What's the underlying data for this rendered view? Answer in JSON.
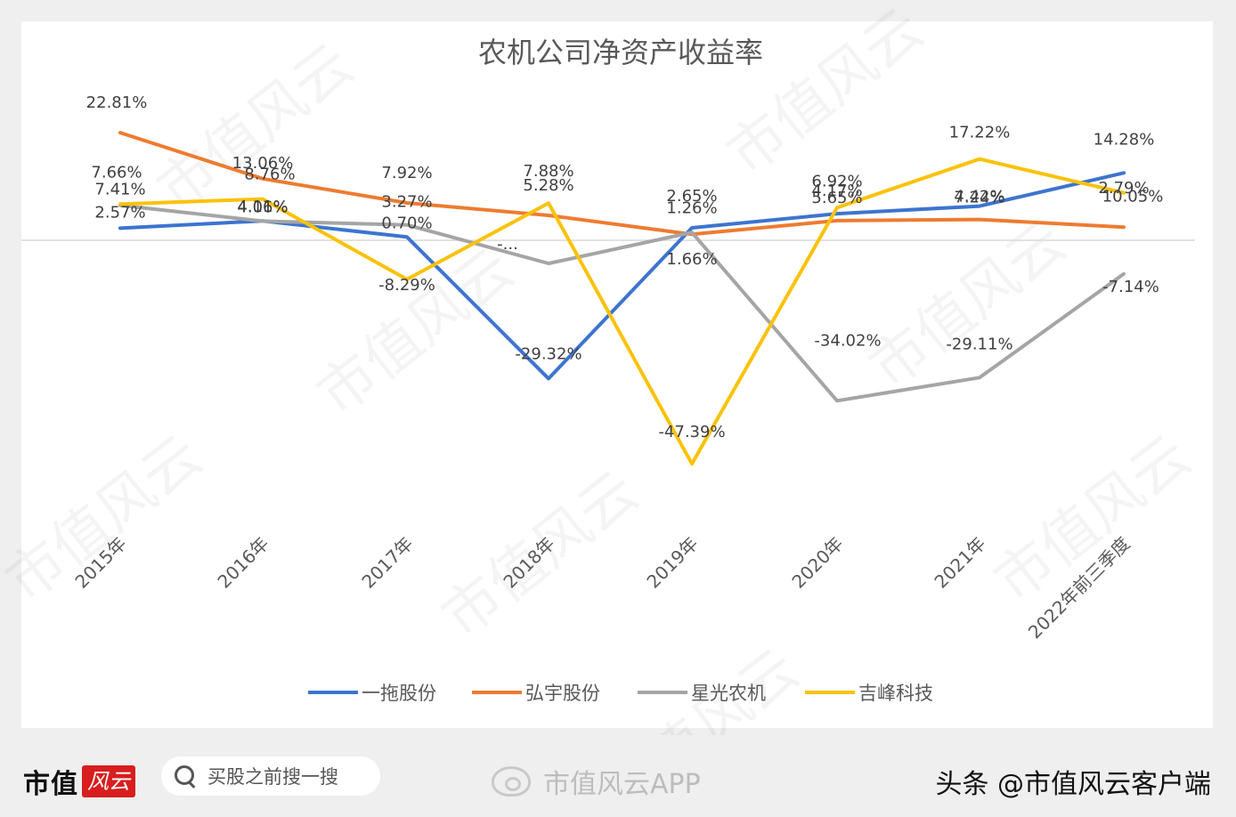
{
  "chart_data": {
    "type": "line",
    "title": "农机公司净资产收益率",
    "categories": [
      "2015年",
      "2016年",
      "2017年",
      "2018年",
      "2019年",
      "2020年",
      "2021年",
      "2022年前三季度"
    ],
    "series": [
      {
        "name": "一拖股份",
        "color": "#3d74cf",
        "values": [
          2.57,
          4.11,
          0.7,
          -29.32,
          2.65,
          5.65,
          7.24,
          14.28
        ],
        "labels": [
          "2.57%",
          "4.11%",
          "0.70%",
          "-29.32%",
          "2.65%",
          "5.65%",
          "7.24%",
          "14.28%"
        ]
      },
      {
        "name": "弘宇股份",
        "color": "#ee7b31",
        "values": [
          22.81,
          13.06,
          7.92,
          5.28,
          1.26,
          4.17,
          4.42,
          2.79
        ],
        "labels": [
          "22.81%",
          "13.06%",
          "7.92%",
          "5.28%",
          "1.26%",
          "4.17%",
          "4.42%",
          "2.79%"
        ]
      },
      {
        "name": "星光农机",
        "color": "#a5a5a5",
        "values": [
          7.41,
          4.06,
          3.27,
          -4.9,
          1.66,
          -34.02,
          -29.11,
          -7.14
        ],
        "labels": [
          "7.41%",
          "4.06%",
          "3.27%",
          "-...",
          "1.66%",
          "-34.02%",
          "-29.11%",
          "-7.14%"
        ]
      },
      {
        "name": "吉峰科技",
        "color": "#fac20a",
        "values": [
          7.66,
          8.76,
          -8.29,
          7.88,
          -47.39,
          6.92,
          17.22,
          10.05
        ],
        "labels": [
          "7.66%",
          "8.76%",
          "-8.29%",
          "7.88%",
          "-47.39%",
          "6.92%",
          "17.22%",
          "10.05%"
        ]
      }
    ],
    "grid": false,
    "legend": "bottom"
  },
  "watermark": "市值风云",
  "footer": {
    "brand_text": "市值",
    "brand_mark": "风云",
    "search_placeholder": "买股之前搜一搜",
    "weibo_text": "市值风云APP",
    "toutiao_text": "头条 @市值风云客户端"
  }
}
